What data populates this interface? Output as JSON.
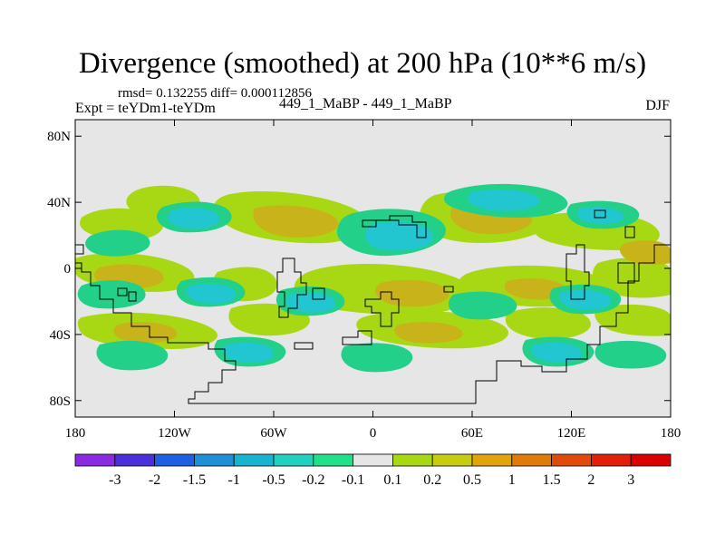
{
  "title": "Divergence (smoothed) at 200 hPa (10**6 m/s)",
  "stats": "rmsd= 0.132255 diff= 0.000112856",
  "experiment": "Expt = teYDm1-teYDm",
  "comparison": "449_1_MaBP - 449_1_MaBP",
  "season": "DJF",
  "map_extent": {
    "lon_range": [
      -180,
      180
    ],
    "lat_range": [
      -90,
      90
    ]
  },
  "lat_ticks": [
    {
      "value": 80,
      "label": "80N"
    },
    {
      "value": 40,
      "label": "40N"
    },
    {
      "value": 0,
      "label": "0"
    },
    {
      "value": -40,
      "label": "40S"
    },
    {
      "value": -80,
      "label": "80S"
    }
  ],
  "lon_ticks": [
    {
      "value": -180,
      "label": "180"
    },
    {
      "value": -120,
      "label": "120W"
    },
    {
      "value": -60,
      "label": "60W"
    },
    {
      "value": 0,
      "label": "0"
    },
    {
      "value": 60,
      "label": "60E"
    },
    {
      "value": 120,
      "label": "120E"
    },
    {
      "value": 180,
      "label": "180"
    }
  ],
  "colorbar": {
    "levels": [
      "-3",
      "-2",
      "-1.5",
      "-1",
      "-0.5",
      "-0.2",
      "-0.1",
      "0.1",
      "0.2",
      "0.5",
      "1",
      "1.5",
      "2",
      "3"
    ],
    "colors": [
      "#8a2be2",
      "#4b2fd9",
      "#1f5fe0",
      "#1f8fd6",
      "#18b3cf",
      "#22d0c2",
      "#22e08a",
      "#e6e6e6",
      "#a8d814",
      "#c8cc10",
      "#e0a50a",
      "#e07a0a",
      "#e04a0a",
      "#e0200a",
      "#d80000"
    ]
  },
  "colors": {
    "zero_band": "#e6e6e6",
    "weak_positive": "#a8d814",
    "positive": "#c8b41a",
    "weak_negative": "#22d08a",
    "negative": "#22c6d0",
    "coast": "#000000"
  }
}
